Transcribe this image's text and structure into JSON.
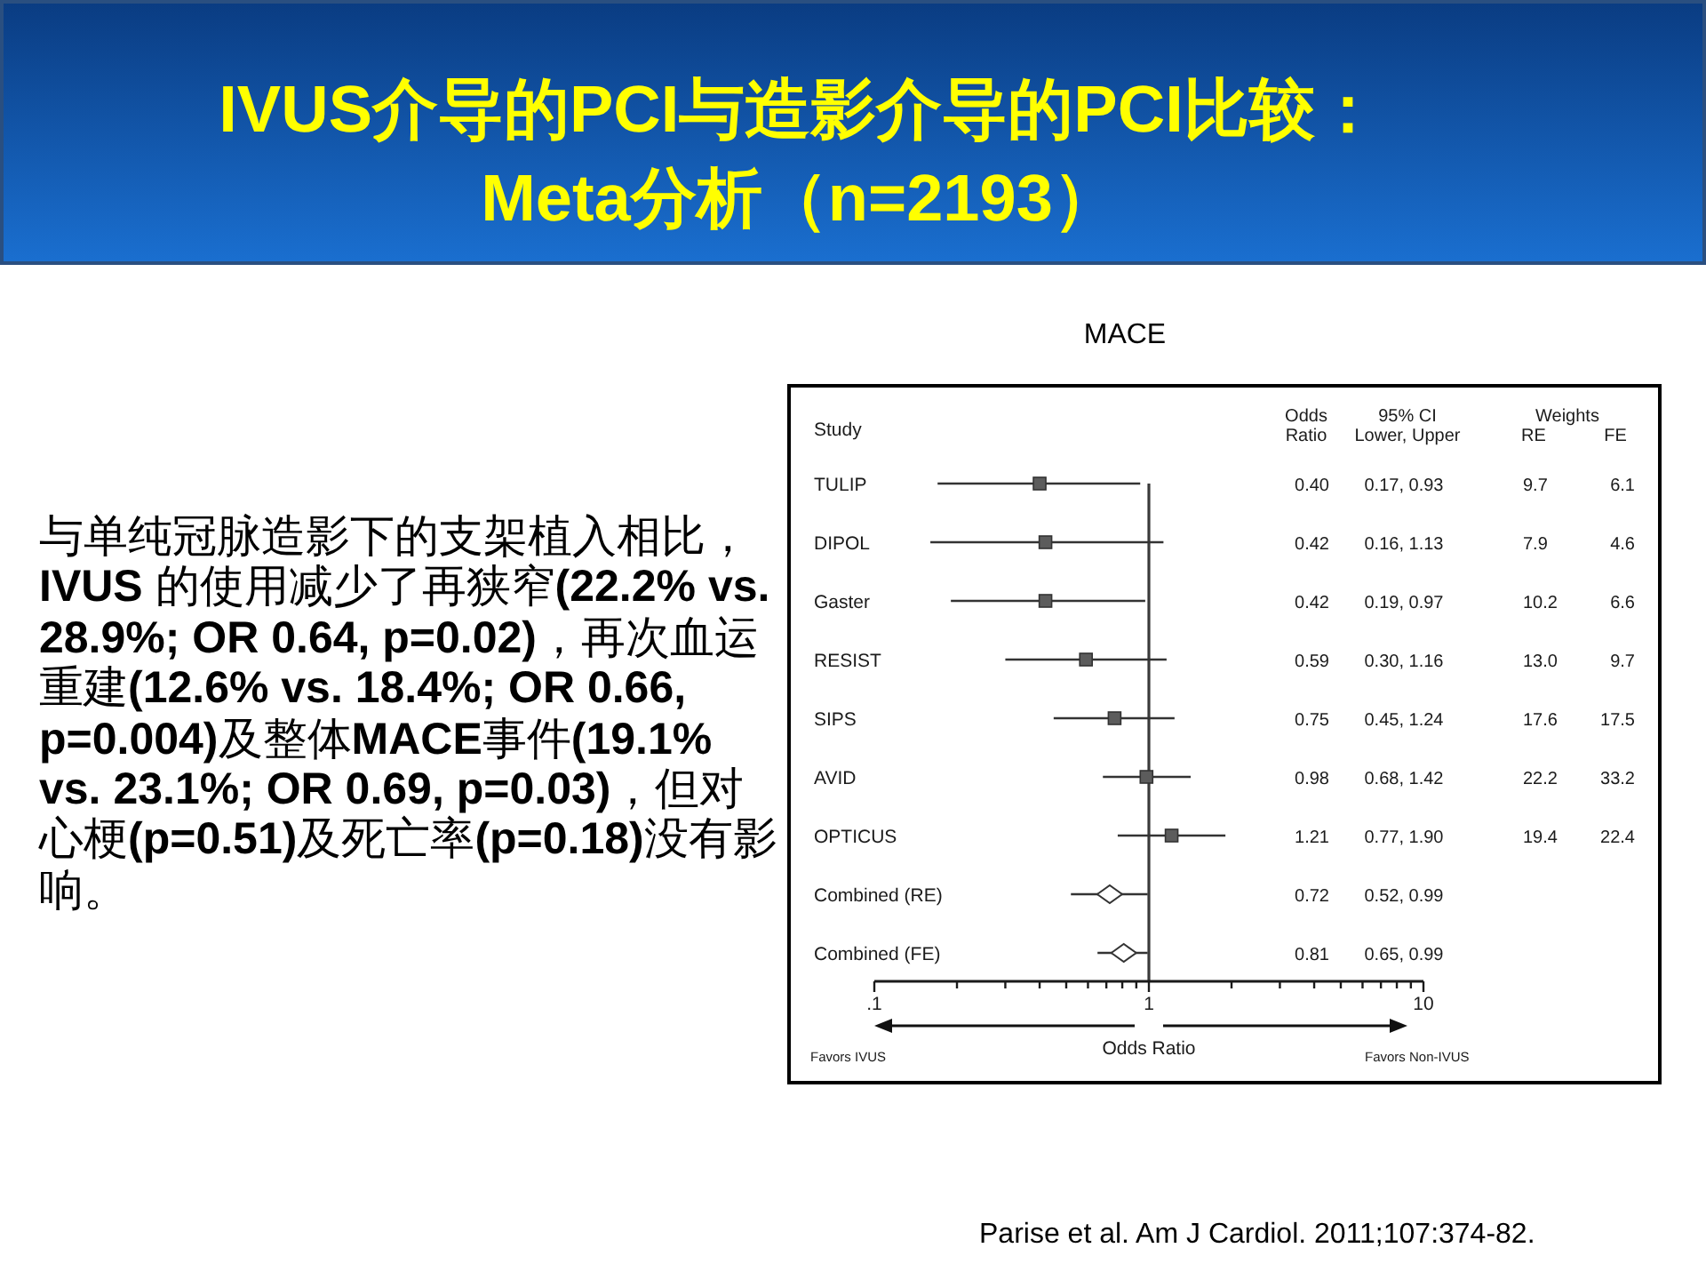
{
  "chart_data": {
    "type": "scatter",
    "title": "IVUS介导的PCI与造影介导的PCI比较：\nMeta分析（n=2193）",
    "subtitle": "MACE",
    "xlabel": "Odds Ratio",
    "orientation": "horizontal",
    "log": "x",
    "categories": [
      "TULIP",
      "DIPOL",
      "Gaster",
      "RESIST",
      "SIPS",
      "AVID",
      "OPTICUS",
      "Combined (RE)",
      "Combined (FE)"
    ],
    "xlim": [
      0.1,
      10
    ],
    "xticks": [
      {
        "value": 0.1,
        "label": ".1"
      },
      {
        "value": 0.2,
        "label": null
      },
      {
        "value": 0.3,
        "label": null
      },
      {
        "value": 0.4,
        "label": null
      },
      {
        "value": 0.5,
        "label": null
      },
      {
        "value": 0.6,
        "label": null
      },
      {
        "value": 0.7,
        "label": null
      },
      {
        "value": 0.8,
        "label": null
      },
      {
        "value": 0.9,
        "label": null
      },
      1,
      {
        "value": 2,
        "label": null
      },
      {
        "value": 3,
        "label": null
      },
      {
        "value": 4,
        "label": null
      },
      {
        "value": 5,
        "label": null
      },
      {
        "value": 6,
        "label": null
      },
      {
        "value": 7,
        "label": null
      },
      {
        "value": 8,
        "label": null
      },
      {
        "value": 9,
        "label": null
      },
      10
    ],
    "ref_lines": [
      {
        "axis": "x",
        "value": 1,
        "color": "#3a3a3a"
      }
    ],
    "series": [
      {
        "marker": "square",
        "color": "#5c5c5c",
        "values": [
          0.4,
          0.42,
          0.42,
          0.59,
          0.75,
          0.98,
          1.21,
          null,
          null
        ],
        "errors": [
          [
            0.17,
            0.93
          ],
          [
            0.16,
            1.13
          ],
          [
            0.19,
            0.97
          ],
          [
            0.3,
            1.16
          ],
          [
            0.45,
            1.24
          ],
          [
            0.68,
            1.42
          ],
          [
            0.77,
            1.9
          ],
          null,
          null
        ]
      },
      {
        "marker": "diamond",
        "color": "#ffffff",
        "values": [
          null,
          null,
          null,
          null,
          null,
          null,
          null,
          0.72,
          0.81
        ],
        "errors": [
          null,
          null,
          null,
          null,
          null,
          null,
          null,
          [
            0.52,
            0.99
          ],
          [
            0.65,
            0.99
          ]
        ]
      }
    ],
    "annotations": [
      "与单纯冠脉造影下的支架植入相比，IVUS 的使用减少了再狭窄(22.2% vs. 28.9%; OR 0.64, p=0.02)，再次血运重建(12.6% vs. 18.4%; OR 0.66, p=0.004)及整体MACE事件(19.1% vs. 23.1%; OR 0.69, p=0.03)，但对心梗(p=0.51)及死亡率(p=0.18)没有影响。",
      "Parise et al. Am J Cardiol. 2011;107:374-82.",
      "Favors IVUS",
      "Favors Non-IVUS",
      "Study",
      "Odds\nRatio",
      "95% CI\nLower, Upper",
      "Weights",
      "RE",
      "FE",
      "0.40",
      "0.42",
      "0.42",
      "0.59",
      "0.75",
      "0.98",
      "1.21",
      "0.72",
      "0.81",
      "0.17, 0.93",
      "0.16, 1.13",
      "0.19, 0.97",
      "0.30, 1.16",
      "0.45, 1.24",
      "0.68, 1.42",
      "0.77, 1.90",
      "0.52, 0.99",
      "0.65, 0.99",
      "9.7",
      "7.9",
      "10.2",
      "13.0",
      "17.6",
      "22.2",
      "19.4",
      "6.1",
      "4.6",
      "6.6",
      "9.7",
      "17.5",
      "33.2",
      "22.4"
    ]
  }
}
